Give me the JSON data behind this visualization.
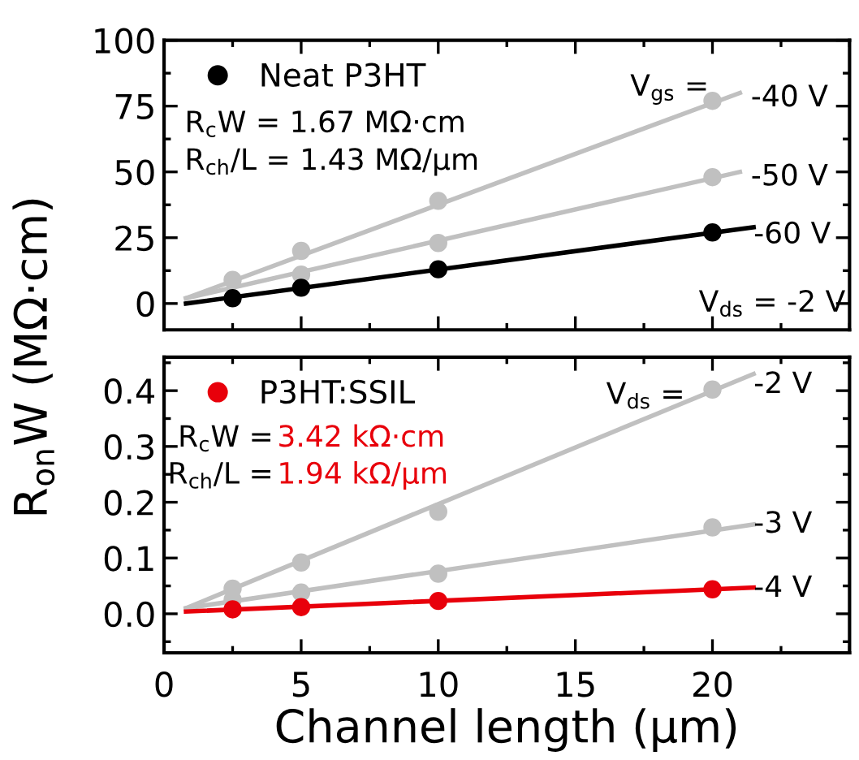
{
  "chart_data": [
    {
      "type": "scatter",
      "ylabel": "R$_{on}$W (MΩ·cm)",
      "xlim": [
        0,
        25
      ],
      "xticks": [
        0,
        5,
        10,
        15,
        20
      ],
      "ylim": [
        -10,
        100
      ],
      "yticks": [
        0,
        25,
        50,
        75,
        100
      ],
      "tick_labels": "y",
      "legend": "top left",
      "marker": "circle",
      "series": [
        {
          "type": "line",
          "marker": "none",
          "color": "#c0c0c0",
          "x": [
            0.8,
            21.0
          ],
          "values": [
            2,
            80
          ]
        },
        {
          "type": "line",
          "marker": "none",
          "color": "#c0c0c0",
          "x": [
            0.8,
            21.0
          ],
          "values": [
            2,
            50
          ]
        },
        {
          "type": "line",
          "marker": "none",
          "color": "#000000",
          "x": [
            0.8,
            21.5
          ],
          "values": [
            0,
            29
          ]
        },
        {
          "color": "#c0c0c0",
          "x": [
            2.5,
            5,
            10,
            20
          ],
          "values": [
            9,
            20,
            39,
            77
          ]
        },
        {
          "color": "#c0c0c0",
          "x": [
            5,
            10,
            20
          ],
          "values": [
            11,
            23,
            48
          ]
        },
        {
          "name": "Neat P3HT",
          "color": "#000000",
          "x": [
            2.5,
            5,
            10,
            20
          ],
          "values": [
            2,
            6,
            13,
            27
          ]
        }
      ],
      "annotations": [
        "R$_{c}$W = 1.67 MΩ·cm",
        "R$_{ch}$/L = 1.43 MΩ/μm",
        "V$_{gs}$ =",
        "V$_{ds}$ = -2 V",
        "-40 V",
        "-50 V",
        "-60 V"
      ]
    },
    {
      "type": "scatter",
      "xlabel": "Channel length (μm)",
      "xlim": [
        0,
        25
      ],
      "xticks": [
        0,
        5,
        10,
        15,
        20
      ],
      "ylim": [
        -0.07,
        0.46
      ],
      "yticks": [
        {
          "value": 0,
          "label": "0.0"
        },
        {
          "value": 0.1,
          "label": "0.1"
        },
        {
          "value": 0.2,
          "label": "0.2"
        },
        {
          "value": 0.3,
          "label": "0.3"
        },
        {
          "value": 0.4,
          "label": "0.4"
        }
      ],
      "legend": "top left",
      "marker": "circle",
      "series": [
        {
          "type": "line",
          "marker": "none",
          "color": "#c0c0c0",
          "x": [
            0.8,
            21.5
          ],
          "values": [
            0.01,
            0.43
          ]
        },
        {
          "type": "line",
          "marker": "none",
          "color": "#c0c0c0",
          "x": [
            0.8,
            21.5
          ],
          "values": [
            0.01,
            0.16
          ]
        },
        {
          "type": "line",
          "marker": "none",
          "color": "#e8000b",
          "x": [
            0.8,
            21.5
          ],
          "values": [
            0.004,
            0.047
          ]
        },
        {
          "color": "#c0c0c0",
          "x": [
            2.5,
            5,
            10,
            20
          ],
          "values": [
            0.045,
            0.092,
            0.183,
            0.402
          ]
        },
        {
          "color": "#c0c0c0",
          "x": [
            2.5,
            5,
            10,
            20
          ],
          "values": [
            0.025,
            0.038,
            0.072,
            0.155
          ]
        },
        {
          "name": "P3HT:SSIL",
          "color": "#e8000b",
          "x": [
            2.5,
            5,
            10,
            20
          ],
          "values": [
            0.008,
            0.012,
            0.023,
            0.044
          ]
        }
      ],
      "annotations": [
        "R$_{c}$W =",
        "3.42 kΩ·cm",
        "R$_{ch}$/L =",
        "1.94 kΩ/μm",
        "V$_{ds}$ =",
        "-2 V",
        "-3 V",
        "-4 V"
      ]
    }
  ]
}
